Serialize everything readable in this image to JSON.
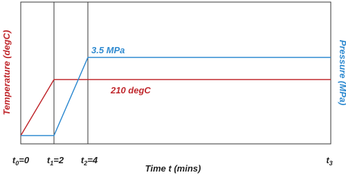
{
  "axes": {
    "left_label": "Temperature (degC)",
    "right_label": "Pressure (MPa)",
    "bottom_label": "Time t (mins)"
  },
  "annotations": {
    "pressure": "3.5 MPa",
    "temperature": "210 degC"
  },
  "time_marks": [
    {
      "symbol": "t",
      "subscript": "0",
      "suffix": "=0"
    },
    {
      "symbol": "t",
      "subscript": "1",
      "suffix": "=2"
    },
    {
      "symbol": "t",
      "subscript": "2",
      "suffix": "=4"
    },
    {
      "symbol": "t",
      "subscript": "3"
    }
  ]
}
